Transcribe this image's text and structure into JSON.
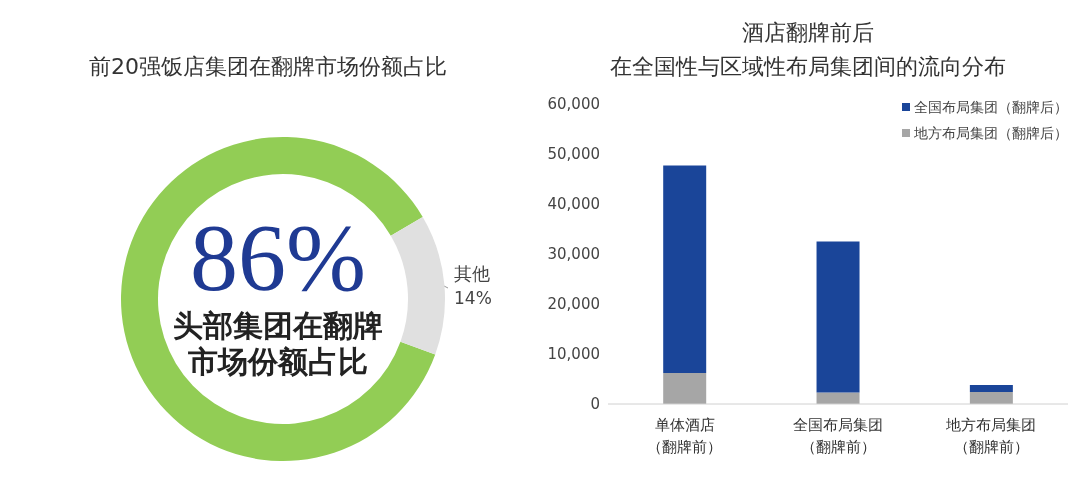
{
  "chart_data": [
    {
      "type": "donut",
      "title": "前20强饭店集团在翻牌市场份额占比",
      "categories": [
        "头部集团在翻牌市场份额占比",
        "其他"
      ],
      "values": [
        86,
        14
      ],
      "value_labels": [
        "86%",
        "14%"
      ],
      "colors": [
        "#92cd55",
        "#e0e0e0"
      ]
    },
    {
      "type": "bar",
      "title": "酒店翻牌前后",
      "subtitle": "在全国性与区域性布局集团间的流向分布",
      "categories": [
        "单体酒店（翻牌前）",
        "全国布局集团（翻牌前）",
        "地方布局集团（翻牌前）"
      ],
      "stacked": true,
      "legend": "top right",
      "grid": false,
      "ylim": [
        0,
        60000
      ],
      "yticks": [
        0,
        {
          "value": 10000,
          "label": "10,000"
        },
        {
          "value": 20000,
          "label": "20,000"
        },
        {
          "value": 30000,
          "label": "30,000"
        },
        {
          "value": 40000,
          "label": "40,000"
        },
        {
          "value": 50000,
          "label": "50,000"
        },
        {
          "value": 60000,
          "label": "60,000"
        }
      ],
      "series": [
        {
          "name": "地方布局集团（翻牌后）",
          "color": "#a6a6a6",
          "values": [
            6200,
            2300,
            2400
          ]
        },
        {
          "name": "全国布局集团（翻牌后）",
          "color": "#1a4599",
          "values": [
            41500,
            30200,
            1400
          ]
        }
      ]
    }
  ]
}
